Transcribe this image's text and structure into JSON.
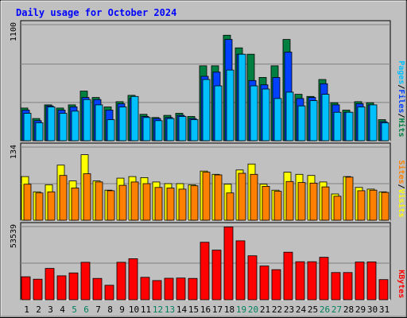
{
  "chart_data": {
    "type": "bar",
    "title": "Daily usage for October 2024",
    "categories": [
      "1",
      "2",
      "3",
      "4",
      "5",
      "6",
      "7",
      "8",
      "9",
      "10",
      "11",
      "12",
      "13",
      "14",
      "15",
      "16",
      "17",
      "18",
      "19",
      "20",
      "21",
      "22",
      "23",
      "24",
      "25",
      "26",
      "27",
      "28",
      "29",
      "30",
      "31"
    ],
    "weekend_days": [
      "5",
      "6",
      "12",
      "13",
      "19",
      "20",
      "26",
      "27"
    ],
    "panels": [
      {
        "id": "hits",
        "ymax_label": "1100",
        "ymax": 1100,
        "series": [
          {
            "name": "Hits",
            "color": "#008040",
            "values": [
              310,
              210,
              340,
              310,
              340,
              470,
              410,
              320,
              370,
              430,
              250,
              220,
              240,
              260,
              230,
              710,
              710,
              1000,
              880,
              820,
              600,
              710,
              960,
              440,
              420,
              580,
              360,
              290,
              370,
              360,
              200
            ]
          },
          {
            "name": "Files",
            "color": "#0040ff",
            "values": [
              290,
              190,
              330,
              290,
              320,
              410,
              390,
              290,
              350,
              400,
              230,
              210,
              220,
              240,
              210,
              610,
              650,
              960,
              820,
              570,
              530,
              600,
              840,
              400,
              410,
              540,
              340,
              270,
              350,
              340,
              180
            ]
          },
          {
            "name": "Pages",
            "color": "#00c0ff",
            "values": [
              260,
              170,
              320,
              260,
              280,
              390,
              340,
              200,
              320,
              420,
              220,
              190,
              210,
              230,
              200,
              580,
              520,
              670,
              820,
              520,
              490,
              400,
              460,
              330,
              380,
              440,
              270,
              270,
              320,
              340,
              170
            ]
          }
        ]
      },
      {
        "id": "visits",
        "ymax_label": "134",
        "ymax": 134,
        "series": [
          {
            "name": "Visits",
            "color": "#ffff00",
            "values": [
              80,
              52,
              65,
              101,
              72,
              120,
              72,
              55,
              77,
              80,
              78,
              70,
              67,
              67,
              65,
              90,
              84,
              66,
              92,
              103,
              66,
              55,
              88,
              84,
              82,
              70,
              48,
              80,
              60,
              57,
              52
            ]
          },
          {
            "name": "Sites",
            "color": "#ff8000",
            "values": [
              66,
              50,
              52,
              82,
              59,
              85,
              70,
              54,
              64,
              70,
              67,
              60,
              59,
              57,
              63,
              88,
              83,
              50,
              86,
              84,
              62,
              53,
              71,
              69,
              68,
              61,
              44,
              79,
              54,
              55,
              51
            ]
          }
        ]
      },
      {
        "id": "kbytes",
        "ymax_label": "53539",
        "ymax": 53539,
        "series": [
          {
            "name": "KBytes",
            "color": "#ff0000",
            "values": [
              16800,
              15000,
              22900,
              17500,
              19600,
              27400,
              15600,
              10600,
              27400,
              30000,
              16400,
              14000,
              15700,
              15900,
              15600,
              42100,
              36300,
              53300,
              43100,
              32200,
              24700,
              22000,
              34800,
              27800,
              27800,
              31100,
              19900,
              19900,
              27600,
              27700,
              14700
            ]
          }
        ]
      }
    ],
    "legend_right": [
      {
        "panel": "hits",
        "parts": [
          {
            "text": "Pages",
            "color": "#00c0ff"
          },
          {
            "text": "/",
            "color": "#000000"
          },
          {
            "text": "Files",
            "color": "#0040ff"
          },
          {
            "text": "/",
            "color": "#000000"
          },
          {
            "text": "Hits",
            "color": "#008040"
          }
        ]
      },
      {
        "panel": "visits",
        "parts": [
          {
            "text": "Sites",
            "color": "#ff8000"
          },
          {
            "text": "/",
            "color": "#000000"
          },
          {
            "text": "Visits",
            "color": "#ffff00"
          }
        ]
      },
      {
        "panel": "kbytes",
        "parts": [
          {
            "text": "KBytes",
            "color": "#ff0000"
          }
        ]
      }
    ],
    "colors": {
      "title": "#0000ff",
      "weekday_label": "#000000",
      "weekend_label": "#00805c",
      "background": "#c0c0c0"
    }
  }
}
